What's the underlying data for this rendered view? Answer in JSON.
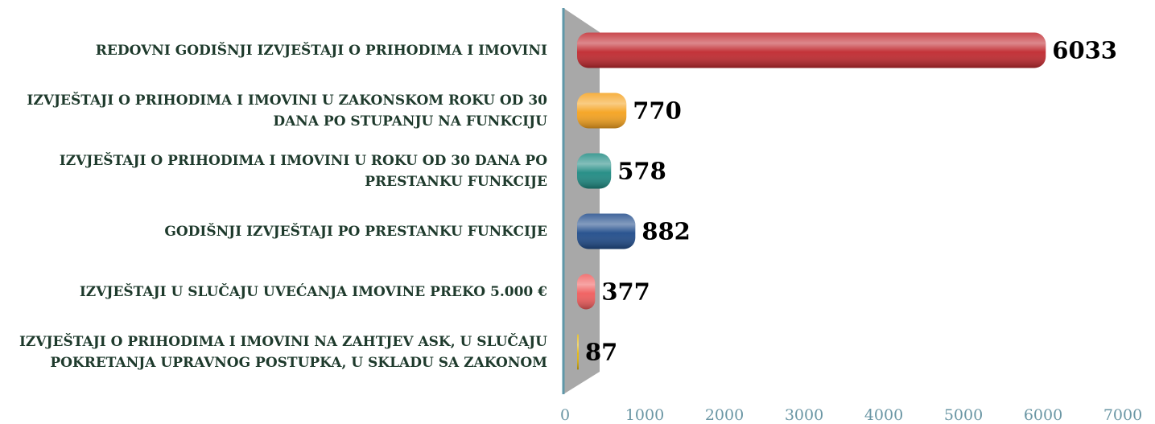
{
  "chart_data": {
    "type": "bar",
    "orientation": "horizontal",
    "categories": [
      "REDOVNI GODIŠNJI IZVJEŠTAJI O PRIHODIMA I IMOVINI",
      "IZVJEŠTAJI O PRIHODIMA I IMOVINI U ZAKONSKOM ROKU OD 30 DANA PO STUPANJU NA FUNKCIJU",
      "IZVJEŠTAJI O PRIHODIMA I IMOVINI U ROKU OD 30 DANA PO PRESTANKU FUNKCIJE",
      "GODIŠNJI IZVJEŠTAJI PO PRESTANKU FUNKCIJE",
      "IZVJEŠTAJI U SLUČAJU UVEĆANJA IMOVINE PREKO 5.000 €",
      "IZVJEŠTAJI O PRIHODIMA I IMOVINI NA ZAHTJEV ASK, U SLUČAJU POKRETANJA UPRAVNOG POSTUPKA, U SKLADU SA ZAKONOM"
    ],
    "values": [
      6033,
      770,
      578,
      882,
      377,
      87
    ],
    "colors": [
      "#c0282e",
      "#f5a21e",
      "#1e8a82",
      "#1f4b8a",
      "#f05c5c",
      "#e2b60c"
    ],
    "xlim": [
      0,
      7000
    ],
    "xticks": [
      0,
      1000,
      2000,
      3000,
      4000,
      5000,
      6000,
      7000
    ]
  }
}
